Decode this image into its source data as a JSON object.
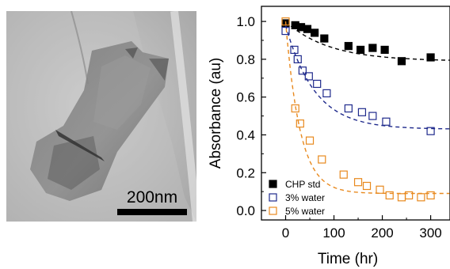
{
  "micrograph": {
    "scale_bar_label": "200nm"
  },
  "chart_data": {
    "type": "scatter",
    "xlabel": "Time (hr)",
    "ylabel": "Absorbance (au)",
    "xlim": [
      -50,
      340
    ],
    "ylim": [
      -0.05,
      1.08
    ],
    "xticks": [
      0,
      100,
      200,
      300
    ],
    "xtick_labels": [
      "0",
      "100",
      "200",
      "300"
    ],
    "yticks": [
      0.0,
      0.2,
      0.4,
      0.6,
      0.8,
      1.0
    ],
    "ytick_labels": [
      "0.0",
      "0.2",
      "0.4",
      "0.6",
      "0.8",
      "1.0"
    ],
    "grid": false,
    "legend_position": "bottom-left",
    "series": [
      {
        "name": "CHP std",
        "marker": "filled-square",
        "color": "#000000",
        "x": [
          0,
          20,
          32,
          45,
          60,
          80,
          130,
          155,
          180,
          205,
          240,
          300
        ],
        "y": [
          0.99,
          0.98,
          0.97,
          0.96,
          0.94,
          0.91,
          0.87,
          0.85,
          0.86,
          0.85,
          0.79,
          0.81
        ],
        "fit": {
          "y0": 0.79,
          "A": 0.21,
          "tau": 90
        }
      },
      {
        "name": "3% water",
        "marker": "open-square",
        "color": "#1f2a8c",
        "x": [
          0,
          18,
          25,
          35,
          48,
          65,
          85,
          130,
          158,
          180,
          208,
          300
        ],
        "y": [
          0.95,
          0.85,
          0.8,
          0.74,
          0.71,
          0.67,
          0.62,
          0.54,
          0.52,
          0.5,
          0.47,
          0.42
        ],
        "fit": {
          "y0": 0.43,
          "A": 0.55,
          "tau": 60
        }
      },
      {
        "name": "5% water",
        "marker": "open-square",
        "color": "#e8891e",
        "x": [
          0,
          20,
          30,
          50,
          75,
          120,
          150,
          168,
          195,
          215,
          240,
          255,
          280,
          300
        ],
        "y": [
          1.0,
          0.54,
          0.46,
          0.37,
          0.27,
          0.19,
          0.15,
          0.13,
          0.11,
          0.08,
          0.07,
          0.08,
          0.07,
          0.08
        ],
        "fit": {
          "y0": 0.09,
          "A": 0.91,
          "tau": 30
        }
      }
    ]
  }
}
